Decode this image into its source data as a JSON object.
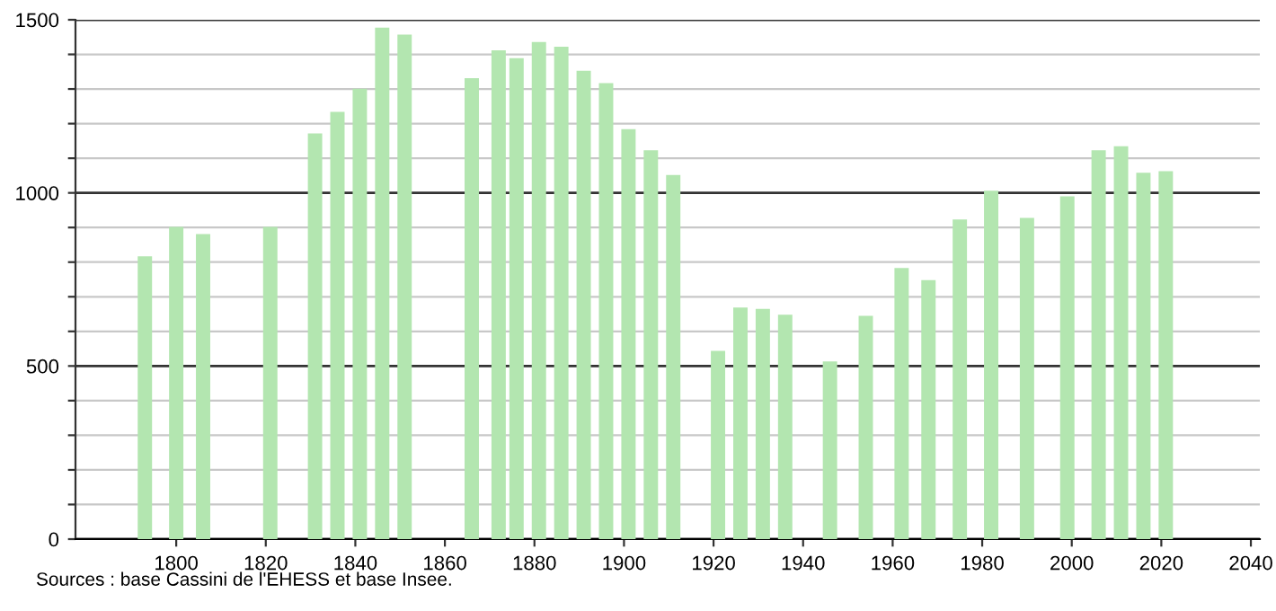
{
  "chart_data": {
    "type": "bar",
    "x": [
      1793,
      1800,
      1806,
      1821,
      1831,
      1836,
      1841,
      1846,
      1851,
      1866,
      1872,
      1876,
      1881,
      1886,
      1891,
      1896,
      1901,
      1906,
      1911,
      1921,
      1926,
      1931,
      1936,
      1946,
      1954,
      1962,
      1968,
      1975,
      1982,
      1990,
      1999,
      2006,
      2011,
      2016,
      2021
    ],
    "values": [
      817,
      902,
      881,
      902,
      1172,
      1234,
      1301,
      1477,
      1457,
      1331,
      1412,
      1389,
      1436,
      1422,
      1353,
      1317,
      1184,
      1123,
      1052,
      544,
      669,
      665,
      648,
      513,
      645,
      783,
      748,
      923,
      1006,
      928,
      990,
      1123,
      1135,
      1058,
      1063
    ],
    "color": "#b3e6b0",
    "xlim": [
      1777.5,
      2042
    ],
    "xticks": [
      1800,
      1820,
      1840,
      1860,
      1880,
      1900,
      1920,
      1940,
      1960,
      1980,
      2000,
      2020,
      2040
    ],
    "ylim": [
      0,
      1500
    ],
    "yticks": [
      0,
      {
        "value": 100,
        "label": null
      },
      {
        "value": 200,
        "label": null
      },
      {
        "value": 300,
        "label": null
      },
      {
        "value": 400,
        "label": null
      },
      500,
      {
        "value": 600,
        "label": null
      },
      {
        "value": 700,
        "label": null
      },
      {
        "value": 800,
        "label": null
      },
      {
        "value": 900,
        "label": null
      },
      1000,
      {
        "value": 1100,
        "label": null
      },
      {
        "value": 1200,
        "label": null
      },
      {
        "value": 1300,
        "label": null
      },
      {
        "value": 1400,
        "label": null
      },
      1500
    ],
    "grid": "y",
    "annotations": [
      "Sources : base Cassini de l'EHESS et base Insee."
    ]
  }
}
